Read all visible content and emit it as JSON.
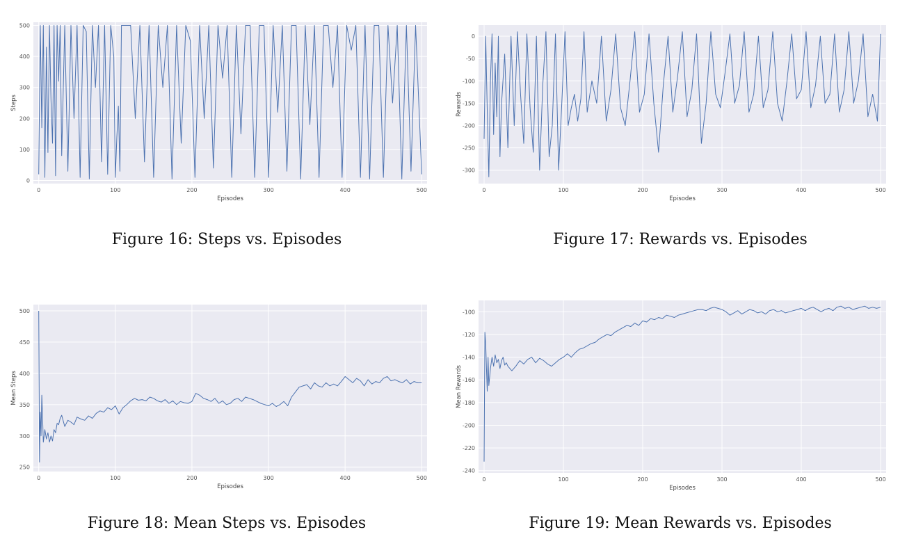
{
  "chart_data": [
    {
      "id": "fig16",
      "type": "line",
      "caption": "Figure 16: Steps vs. Episodes",
      "xlabel": "Episodes",
      "ylabel": "Steps",
      "xlim": [
        -7,
        507
      ],
      "ylim": [
        -10,
        510
      ],
      "xticks": [
        0,
        100,
        200,
        300,
        400,
        500
      ],
      "yticks": [
        0,
        100,
        200,
        300,
        400,
        500
      ],
      "grid": true,
      "series": [
        {
          "color": "#4c72b0",
          "x": [
            0,
            2,
            4,
            6,
            8,
            10,
            12,
            14,
            16,
            18,
            20,
            22,
            24,
            26,
            28,
            30,
            34,
            38,
            42,
            46,
            50,
            54,
            58,
            62,
            66,
            70,
            74,
            78,
            82,
            86,
            90,
            94,
            98,
            100,
            102,
            104,
            106,
            108,
            112,
            116,
            120,
            126,
            132,
            138,
            144,
            150,
            156,
            162,
            168,
            174,
            180,
            186,
            192,
            198,
            204,
            210,
            216,
            222,
            228,
            234,
            240,
            246,
            252,
            258,
            264,
            270,
            276,
            282,
            288,
            294,
            300,
            306,
            312,
            318,
            324,
            330,
            336,
            342,
            348,
            354,
            360,
            366,
            372,
            378,
            384,
            390,
            396,
            402,
            408,
            414,
            420,
            426,
            432,
            438,
            444,
            450,
            456,
            462,
            468,
            474,
            480,
            486,
            492,
            496,
            500
          ],
          "values": [
            20,
            500,
            170,
            500,
            10,
            430,
            90,
            500,
            260,
            120,
            500,
            15,
            500,
            320,
            500,
            80,
            500,
            30,
            500,
            200,
            500,
            10,
            500,
            480,
            5,
            500,
            300,
            500,
            60,
            500,
            20,
            500,
            400,
            10,
            140,
            240,
            30,
            500,
            500,
            500,
            500,
            200,
            500,
            60,
            500,
            10,
            500,
            300,
            500,
            5,
            500,
            120,
            500,
            450,
            10,
            500,
            200,
            500,
            40,
            500,
            330,
            500,
            10,
            500,
            150,
            500,
            500,
            10,
            500,
            500,
            10,
            500,
            220,
            500,
            30,
            500,
            500,
            5,
            500,
            180,
            500,
            10,
            500,
            500,
            300,
            500,
            10,
            500,
            420,
            500,
            10,
            500,
            5,
            500,
            500,
            10,
            500,
            250,
            500,
            5,
            500,
            30,
            500,
            260,
            20
          ]
        }
      ]
    },
    {
      "id": "fig17",
      "type": "line",
      "caption": "Figure 17: Rewards vs. Episodes",
      "xlabel": "Episodes",
      "ylabel": "Rewards",
      "xlim": [
        -7,
        507
      ],
      "ylim": [
        -330,
        25
      ],
      "xticks": [
        0,
        100,
        200,
        300,
        400,
        500
      ],
      "yticks": [
        0,
        -50,
        -100,
        -150,
        -200,
        -250,
        -300
      ],
      "grid": true,
      "series": [
        {
          "color": "#4c72b0",
          "x": [
            0,
            2,
            4,
            6,
            8,
            10,
            12,
            14,
            16,
            18,
            20,
            22,
            26,
            30,
            34,
            38,
            42,
            46,
            50,
            54,
            58,
            62,
            66,
            70,
            74,
            78,
            82,
            86,
            90,
            94,
            98,
            102,
            106,
            110,
            114,
            118,
            122,
            126,
            130,
            136,
            142,
            148,
            154,
            160,
            166,
            172,
            178,
            184,
            190,
            196,
            202,
            208,
            214,
            220,
            226,
            232,
            238,
            244,
            250,
            256,
            262,
            268,
            274,
            280,
            286,
            292,
            298,
            304,
            310,
            316,
            322,
            328,
            334,
            340,
            346,
            352,
            358,
            364,
            370,
            376,
            382,
            388,
            394,
            400,
            406,
            412,
            418,
            424,
            430,
            436,
            442,
            448,
            454,
            460,
            466,
            472,
            478,
            484,
            490,
            496,
            500
          ],
          "values": [
            -230,
            0,
            -165,
            -315,
            -100,
            5,
            -220,
            -60,
            -180,
            0,
            -270,
            -150,
            -40,
            -250,
            0,
            -200,
            10,
            -130,
            -240,
            5,
            -160,
            -260,
            0,
            -300,
            -110,
            10,
            -270,
            -200,
            5,
            -300,
            -150,
            10,
            -200,
            -160,
            -130,
            -190,
            -140,
            10,
            -170,
            -100,
            -150,
            0,
            -190,
            -120,
            5,
            -160,
            -200,
            -100,
            10,
            -170,
            -130,
            5,
            -150,
            -260,
            -110,
            0,
            -170,
            -90,
            10,
            -180,
            -120,
            5,
            -240,
            -150,
            10,
            -130,
            -160,
            -80,
            5,
            -150,
            -110,
            10,
            -170,
            -130,
            0,
            -160,
            -120,
            10,
            -150,
            -190,
            -100,
            5,
            -140,
            -120,
            10,
            -160,
            -110,
            0,
            -150,
            -130,
            5,
            -170,
            -120,
            10,
            -150,
            -100,
            5,
            -180,
            -130,
            -190,
            5
          ]
        }
      ]
    },
    {
      "id": "fig18",
      "type": "line",
      "caption": "Figure 18: Mean Steps vs. Episodes",
      "xlabel": "Episodes",
      "ylabel": "Mean Steps",
      "xlim": [
        -7,
        507
      ],
      "ylim": [
        243,
        510
      ],
      "xticks": [
        0,
        100,
        200,
        300,
        400,
        500
      ],
      "yticks": [
        250,
        300,
        350,
        400,
        450,
        500
      ],
      "grid": true,
      "series": [
        {
          "color": "#4c72b0",
          "x": [
            0,
            1,
            2,
            3,
            4,
            5,
            6,
            8,
            10,
            12,
            14,
            16,
            18,
            20,
            22,
            24,
            26,
            28,
            30,
            34,
            38,
            42,
            46,
            50,
            55,
            60,
            65,
            70,
            75,
            80,
            85,
            90,
            95,
            100,
            105,
            110,
            115,
            120,
            125,
            130,
            135,
            140,
            145,
            150,
            155,
            160,
            165,
            170,
            175,
            180,
            185,
            190,
            195,
            200,
            205,
            210,
            215,
            220,
            225,
            230,
            235,
            240,
            245,
            250,
            255,
            260,
            265,
            270,
            275,
            280,
            285,
            290,
            295,
            300,
            305,
            310,
            315,
            320,
            325,
            330,
            335,
            340,
            345,
            350,
            355,
            360,
            365,
            370,
            375,
            380,
            385,
            390,
            395,
            400,
            405,
            410,
            415,
            420,
            425,
            430,
            435,
            440,
            445,
            450,
            455,
            460,
            465,
            470,
            475,
            480,
            485,
            490,
            495,
            500
          ],
          "values": [
            500,
            258,
            338,
            300,
            365,
            330,
            290,
            310,
            295,
            305,
            290,
            300,
            292,
            310,
            305,
            320,
            318,
            328,
            333,
            315,
            325,
            322,
            318,
            330,
            327,
            325,
            332,
            328,
            336,
            340,
            338,
            345,
            342,
            348,
            335,
            345,
            350,
            356,
            360,
            357,
            358,
            356,
            362,
            360,
            356,
            354,
            358,
            352,
            356,
            350,
            355,
            353,
            352,
            355,
            368,
            365,
            360,
            358,
            355,
            360,
            352,
            356,
            350,
            352,
            358,
            360,
            355,
            362,
            360,
            358,
            355,
            352,
            350,
            348,
            352,
            347,
            350,
            355,
            348,
            362,
            370,
            378,
            380,
            382,
            375,
            385,
            380,
            378,
            385,
            380,
            383,
            380,
            387,
            395,
            390,
            385,
            392,
            388,
            380,
            390,
            383,
            387,
            385,
            392,
            395,
            388,
            390,
            387,
            385,
            390,
            383,
            387,
            385,
            385
          ]
        }
      ]
    },
    {
      "id": "fig19",
      "type": "line",
      "caption": "Figure 19: Mean Rewards vs. Episodes",
      "xlabel": "Episodes",
      "ylabel": "Mean Rewards",
      "xlim": [
        -7,
        507
      ],
      "ylim": [
        -242,
        -90
      ],
      "xticks": [
        0,
        100,
        200,
        300,
        400,
        500
      ],
      "yticks": [
        -100,
        -120,
        -140,
        -160,
        -180,
        -200,
        -220,
        -240
      ],
      "grid": true,
      "series": [
        {
          "color": "#4c72b0",
          "x": [
            0,
            1,
            2,
            3,
            4,
            5,
            6,
            8,
            10,
            12,
            14,
            16,
            18,
            20,
            22,
            24,
            26,
            28,
            30,
            35,
            40,
            45,
            50,
            55,
            60,
            65,
            70,
            75,
            80,
            85,
            90,
            95,
            100,
            105,
            110,
            115,
            120,
            125,
            130,
            135,
            140,
            145,
            150,
            155,
            160,
            165,
            170,
            175,
            180,
            185,
            190,
            195,
            200,
            205,
            210,
            215,
            220,
            225,
            230,
            235,
            240,
            245,
            250,
            255,
            260,
            265,
            270,
            275,
            280,
            285,
            290,
            295,
            300,
            305,
            310,
            315,
            320,
            325,
            330,
            335,
            340,
            345,
            350,
            355,
            360,
            365,
            370,
            375,
            380,
            385,
            390,
            395,
            400,
            405,
            410,
            415,
            420,
            425,
            430,
            435,
            440,
            445,
            450,
            455,
            460,
            465,
            470,
            475,
            480,
            485,
            490,
            495,
            500
          ],
          "values": [
            -232,
            -118,
            -128,
            -150,
            -170,
            -140,
            -165,
            -150,
            -140,
            -148,
            -138,
            -145,
            -142,
            -150,
            -143,
            -140,
            -147,
            -145,
            -148,
            -152,
            -148,
            -143,
            -146,
            -142,
            -140,
            -145,
            -141,
            -143,
            -146,
            -148,
            -145,
            -142,
            -140,
            -137,
            -140,
            -136,
            -133,
            -132,
            -130,
            -128,
            -127,
            -124,
            -122,
            -120,
            -121,
            -118,
            -116,
            -114,
            -112,
            -113,
            -110,
            -112,
            -108,
            -109,
            -106,
            -107,
            -105,
            -106,
            -103,
            -104,
            -105,
            -103,
            -102,
            -101,
            -100,
            -99,
            -98,
            -98,
            -99,
            -97,
            -96,
            -97,
            -98,
            -100,
            -103,
            -101,
            -99,
            -102,
            -100,
            -98,
            -99,
            -101,
            -100,
            -102,
            -99,
            -98,
            -100,
            -99,
            -101,
            -100,
            -99,
            -98,
            -97,
            -99,
            -97,
            -96,
            -98,
            -100,
            -98,
            -97,
            -99,
            -96,
            -95,
            -97,
            -96,
            -98,
            -97,
            -96,
            -95,
            -97,
            -96,
            -97,
            -96
          ]
        }
      ]
    }
  ]
}
